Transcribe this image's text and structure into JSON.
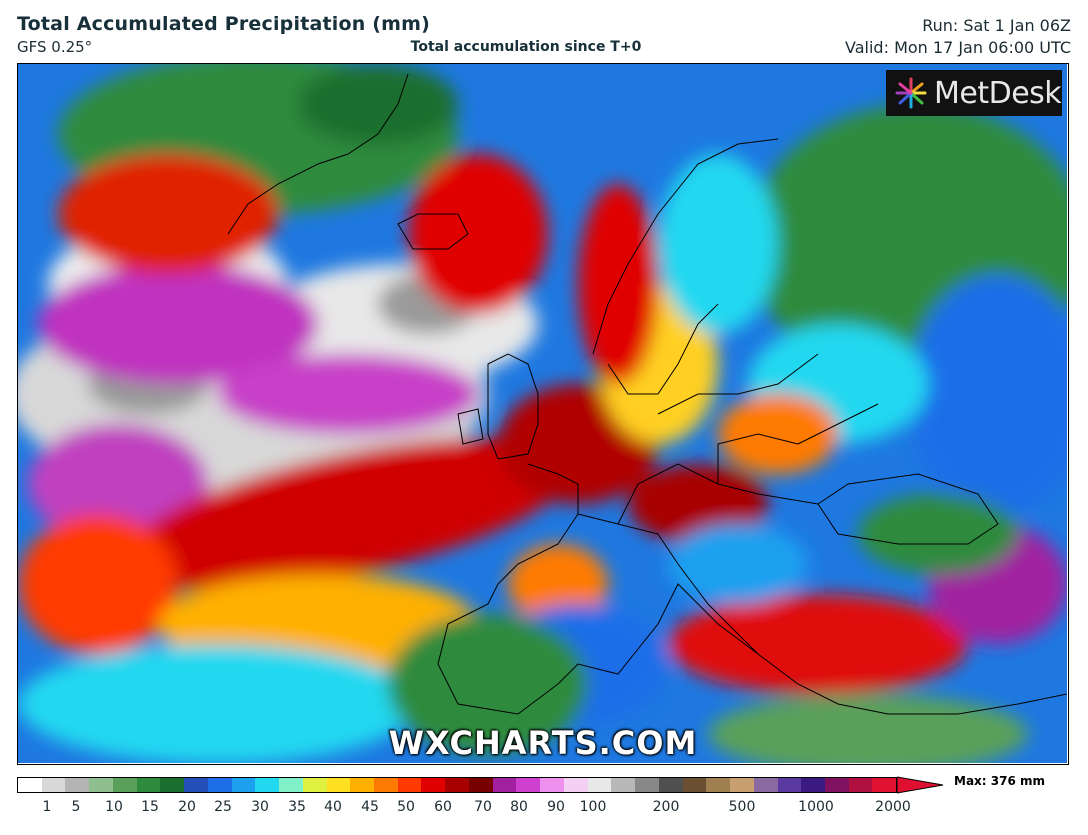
{
  "header": {
    "title": "Total Accumulated Precipitation (mm)",
    "model": "GFS 0.25°",
    "subtitle": "Total accumulation since T+0",
    "run": "Run: Sat 1 Jan 06Z",
    "valid": "Valid: Mon 17 Jan 06:00 UTC"
  },
  "map": {
    "logo_text": "MetDesk",
    "logo_icon": "starburst-logo-icon",
    "watermark": "WXCHARTS.COM"
  },
  "colorbar": {
    "max_label": "Max: 376 mm",
    "ticks": [
      "1",
      "5",
      "10",
      "15",
      "20",
      "25",
      "30",
      "35",
      "40",
      "45",
      "50",
      "60",
      "70",
      "80",
      "90",
      "100",
      "200",
      "500",
      "1000",
      "2000"
    ],
    "colors": [
      "#ffffff",
      "#d8d8d8",
      "#b4b4b4",
      "#8fbf8f",
      "#5aa05a",
      "#2e8b3e",
      "#1a6e2e",
      "#2350b8",
      "#1e6ee8",
      "#1ea0f0",
      "#22d8f0",
      "#7ff0c8",
      "#e0f040",
      "#ffe020",
      "#ffb000",
      "#ff7a00",
      "#ff3a00",
      "#e00000",
      "#a80000",
      "#780000",
      "#a020a0",
      "#d040d0",
      "#ee90ee",
      "#f4d0f4",
      "#e8e8e8",
      "#b8b8b8",
      "#888888",
      "#505050",
      "#6a5030",
      "#a08050",
      "#c8a070",
      "#8a6aa0",
      "#5a3aa0",
      "#3a1a80",
      "#801060",
      "#b01040",
      "#e01030"
    ]
  }
}
